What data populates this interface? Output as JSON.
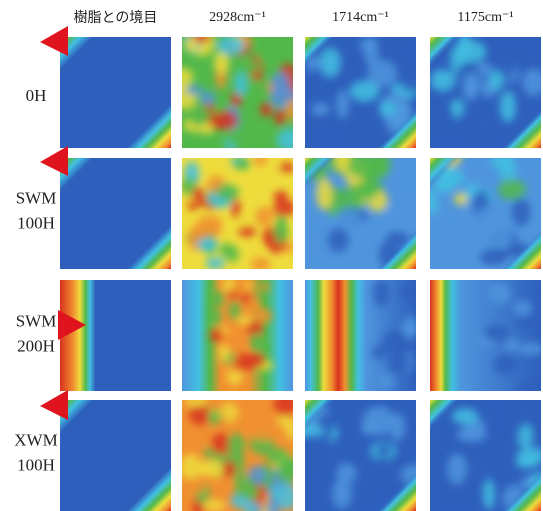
{
  "header": {
    "columns": [
      "樹脂との境目",
      "2928cm⁻¹",
      "1714cm⁻¹",
      "1175cm⁻¹"
    ]
  },
  "rows": [
    {
      "label": [
        "0H"
      ]
    },
    {
      "label": [
        "SWM",
        "100H"
      ]
    },
    {
      "label": [
        "SWM",
        "200H"
      ]
    },
    {
      "label": [
        "XWM",
        "100H"
      ]
    }
  ]
}
